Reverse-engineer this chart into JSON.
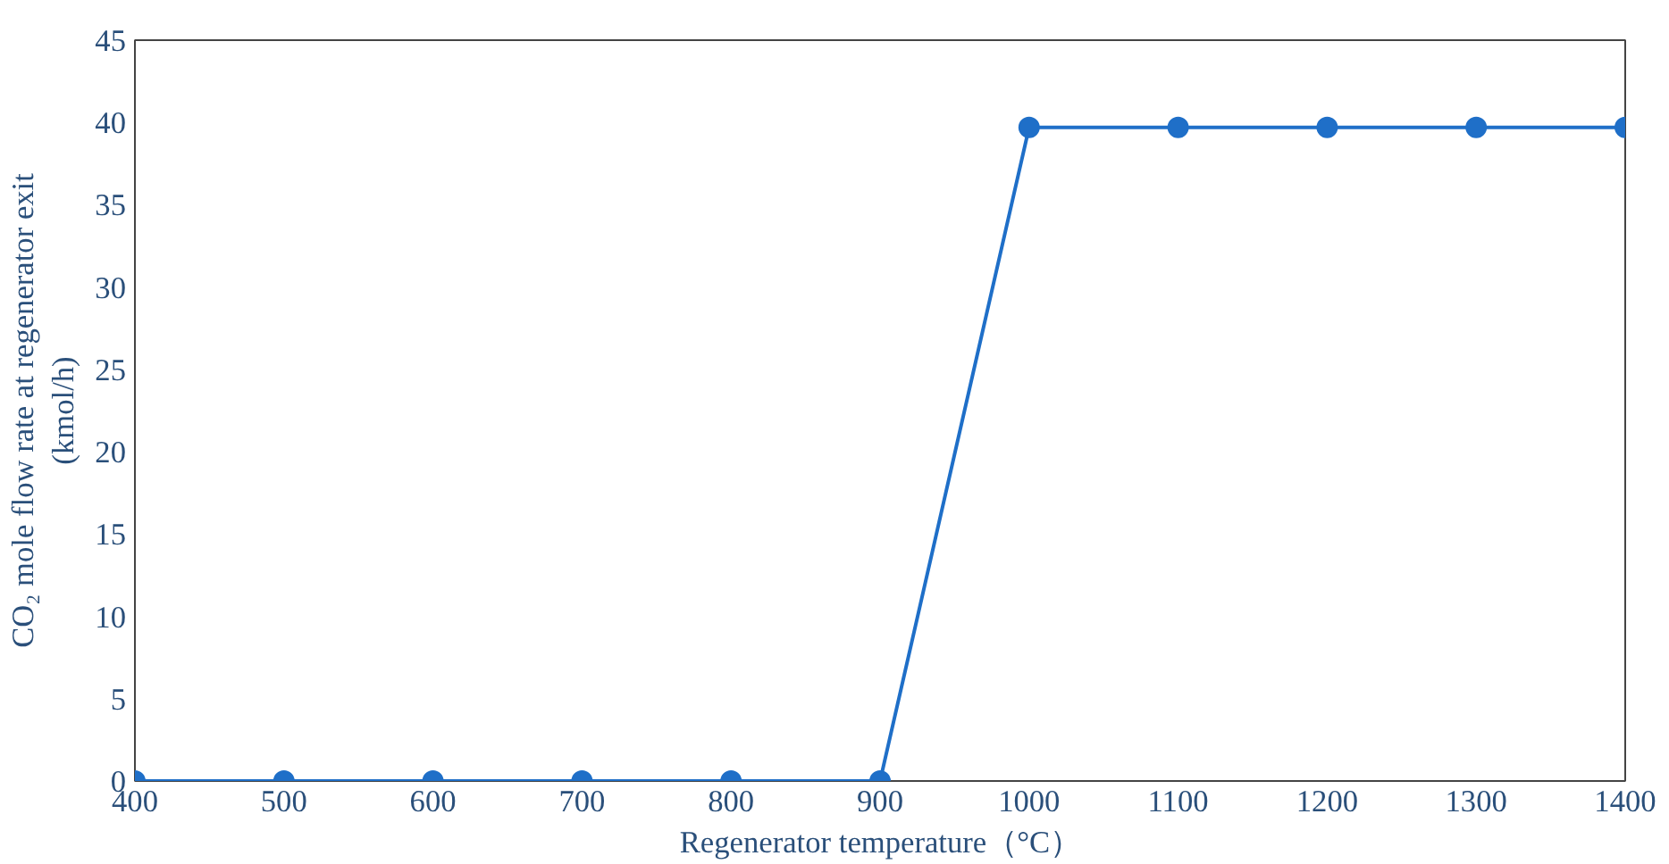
{
  "chart_data": {
    "type": "line",
    "xlabel": "Regenerator temperature（°C）",
    "ylabel": "CO₂ mole flow rate at regenerator exit\n(kmol/h)",
    "x": [
      400,
      500,
      600,
      700,
      800,
      900,
      1000,
      1100,
      1200,
      1300,
      1400
    ],
    "series": [
      {
        "color": "#1f6fc8",
        "values": [
          0,
          0,
          0,
          0,
          0,
          0,
          39.7,
          39.7,
          39.7,
          39.7,
          39.7
        ]
      }
    ],
    "xlim": [
      400,
      1400
    ],
    "xticks": [
      400,
      500,
      600,
      700,
      800,
      900,
      1000,
      1100,
      1200,
      1300,
      1400
    ],
    "ylim": [
      0,
      45
    ],
    "yticks": [
      0,
      5,
      10,
      15,
      20,
      25,
      30,
      35,
      40,
      45
    ],
    "grid": false,
    "marker": "circle",
    "line_style": "solid"
  }
}
